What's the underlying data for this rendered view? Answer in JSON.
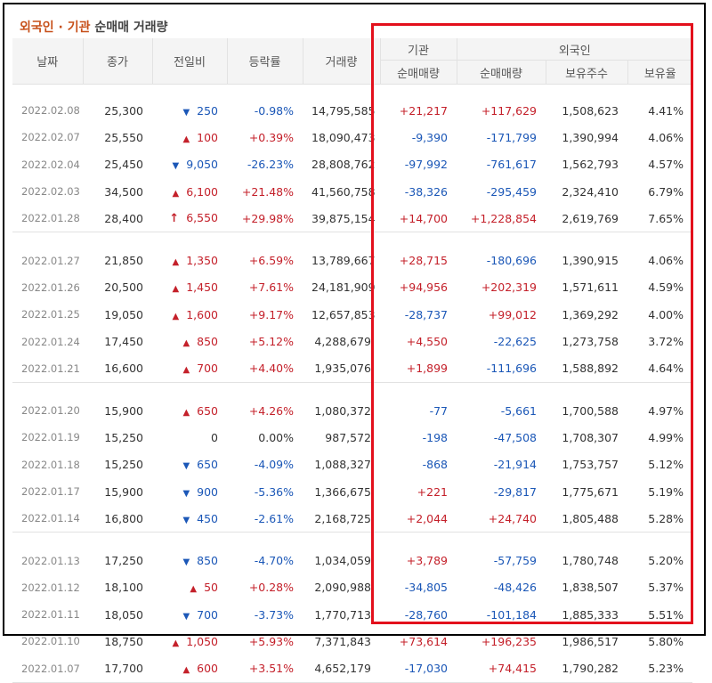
{
  "title": {
    "part1": "외국인 · 기관",
    "part2": "순매매 거래량"
  },
  "headers": {
    "date": "날짜",
    "close": "종가",
    "change": "전일비",
    "rate": "등락률",
    "volume": "거래량",
    "institution": "기관",
    "foreign": "외국인",
    "inst_net": "순매매량",
    "foreign_net": "순매매량",
    "holdings": "보유주수",
    "holding_ratio": "보유율"
  },
  "colors": {
    "up": "#c4202a",
    "down": "#1b57b7",
    "highlight_border": "#e3101c"
  },
  "groups": [
    {
      "rows": [
        {
          "date": "2022.02.08",
          "close": "25,300",
          "dir": "down",
          "change": "250",
          "rate": "-0.98%",
          "volume": "14,795,585",
          "inst": "+21,217",
          "foreign": "+117,629",
          "holdings": "1,508,623",
          "ratio": "4.41%"
        },
        {
          "date": "2022.02.07",
          "close": "25,550",
          "dir": "up",
          "change": "100",
          "rate": "+0.39%",
          "volume": "18,090,473",
          "inst": "-9,390",
          "foreign": "-171,799",
          "holdings": "1,390,994",
          "ratio": "4.06%"
        },
        {
          "date": "2022.02.04",
          "close": "25,450",
          "dir": "down",
          "change": "9,050",
          "rate": "-26.23%",
          "volume": "28,808,762",
          "inst": "-97,992",
          "foreign": "-761,617",
          "holdings": "1,562,793",
          "ratio": "4.57%"
        },
        {
          "date": "2022.02.03",
          "close": "34,500",
          "dir": "up",
          "change": "6,100",
          "rate": "+21.48%",
          "volume": "41,560,758",
          "inst": "-38,326",
          "foreign": "-295,459",
          "holdings": "2,324,410",
          "ratio": "6.79%"
        },
        {
          "date": "2022.01.28",
          "close": "28,400",
          "dir": "limit-up",
          "change": "6,550",
          "rate": "+29.98%",
          "volume": "39,875,154",
          "inst": "+14,700",
          "foreign": "+1,228,854",
          "holdings": "2,619,769",
          "ratio": "7.65%"
        }
      ]
    },
    {
      "rows": [
        {
          "date": "2022.01.27",
          "close": "21,850",
          "dir": "up",
          "change": "1,350",
          "rate": "+6.59%",
          "volume": "13,789,667",
          "inst": "+28,715",
          "foreign": "-180,696",
          "holdings": "1,390,915",
          "ratio": "4.06%"
        },
        {
          "date": "2022.01.26",
          "close": "20,500",
          "dir": "up",
          "change": "1,450",
          "rate": "+7.61%",
          "volume": "24,181,909",
          "inst": "+94,956",
          "foreign": "+202,319",
          "holdings": "1,571,611",
          "ratio": "4.59%"
        },
        {
          "date": "2022.01.25",
          "close": "19,050",
          "dir": "up",
          "change": "1,600",
          "rate": "+9.17%",
          "volume": "12,657,853",
          "inst": "-28,737",
          "foreign": "+99,012",
          "holdings": "1,369,292",
          "ratio": "4.00%"
        },
        {
          "date": "2022.01.24",
          "close": "17,450",
          "dir": "up",
          "change": "850",
          "rate": "+5.12%",
          "volume": "4,288,679",
          "inst": "+4,550",
          "foreign": "-22,625",
          "holdings": "1,273,758",
          "ratio": "3.72%"
        },
        {
          "date": "2022.01.21",
          "close": "16,600",
          "dir": "up",
          "change": "700",
          "rate": "+4.40%",
          "volume": "1,935,076",
          "inst": "+1,899",
          "foreign": "-111,696",
          "holdings": "1,588,892",
          "ratio": "4.64%"
        }
      ]
    },
    {
      "rows": [
        {
          "date": "2022.01.20",
          "close": "15,900",
          "dir": "up",
          "change": "650",
          "rate": "+4.26%",
          "volume": "1,080,372",
          "inst": "-77",
          "foreign": "-5,661",
          "holdings": "1,700,588",
          "ratio": "4.97%"
        },
        {
          "date": "2022.01.19",
          "close": "15,250",
          "dir": "flat",
          "change": "0",
          "rate": "0.00%",
          "volume": "987,572",
          "inst": "-198",
          "foreign": "-47,508",
          "holdings": "1,708,307",
          "ratio": "4.99%"
        },
        {
          "date": "2022.01.18",
          "close": "15,250",
          "dir": "down",
          "change": "650",
          "rate": "-4.09%",
          "volume": "1,088,327",
          "inst": "-868",
          "foreign": "-21,914",
          "holdings": "1,753,757",
          "ratio": "5.12%"
        },
        {
          "date": "2022.01.17",
          "close": "15,900",
          "dir": "down",
          "change": "900",
          "rate": "-5.36%",
          "volume": "1,366,675",
          "inst": "+221",
          "foreign": "-29,817",
          "holdings": "1,775,671",
          "ratio": "5.19%"
        },
        {
          "date": "2022.01.14",
          "close": "16,800",
          "dir": "down",
          "change": "450",
          "rate": "-2.61%",
          "volume": "2,168,725",
          "inst": "+2,044",
          "foreign": "+24,740",
          "holdings": "1,805,488",
          "ratio": "5.28%"
        }
      ]
    },
    {
      "rows": [
        {
          "date": "2022.01.13",
          "close": "17,250",
          "dir": "down",
          "change": "850",
          "rate": "-4.70%",
          "volume": "1,034,059",
          "inst": "+3,789",
          "foreign": "-57,759",
          "holdings": "1,780,748",
          "ratio": "5.20%"
        },
        {
          "date": "2022.01.12",
          "close": "18,100",
          "dir": "up",
          "change": "50",
          "rate": "+0.28%",
          "volume": "2,090,988",
          "inst": "-34,805",
          "foreign": "-48,426",
          "holdings": "1,838,507",
          "ratio": "5.37%"
        },
        {
          "date": "2022.01.11",
          "close": "18,050",
          "dir": "down",
          "change": "700",
          "rate": "-3.73%",
          "volume": "1,770,713",
          "inst": "-28,760",
          "foreign": "-101,184",
          "holdings": "1,885,333",
          "ratio": "5.51%"
        },
        {
          "date": "2022.01.10",
          "close": "18,750",
          "dir": "up",
          "change": "1,050",
          "rate": "+5.93%",
          "volume": "7,371,843",
          "inst": "+73,614",
          "foreign": "+196,235",
          "holdings": "1,986,517",
          "ratio": "5.80%"
        },
        {
          "date": "2022.01.07",
          "close": "17,700",
          "dir": "up",
          "change": "600",
          "rate": "+3.51%",
          "volume": "4,652,179",
          "inst": "-17,030",
          "foreign": "+74,415",
          "holdings": "1,790,282",
          "ratio": "5.23%"
        }
      ]
    }
  ]
}
